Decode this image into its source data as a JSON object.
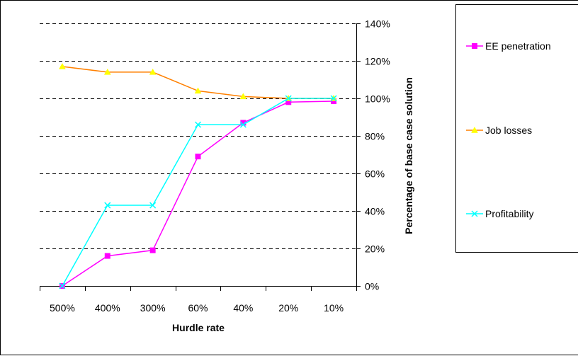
{
  "chart_data": {
    "type": "line",
    "title": "",
    "xlabel": "Hurdle rate",
    "ylabel": "Percentage of base case solution",
    "categories": [
      "500%",
      "400%",
      "300%",
      "60%",
      "40%",
      "20%",
      "10%"
    ],
    "ylim": [
      0,
      140
    ],
    "yticks": [
      0,
      20,
      40,
      60,
      80,
      100,
      120,
      140
    ],
    "ytick_labels": [
      "0%",
      "20%",
      "40%",
      "60%",
      "80%",
      "100%",
      "120%",
      "140%"
    ],
    "y_axis_side": "right",
    "grid": "horizontal dashed",
    "legend_position": "right",
    "series": [
      {
        "name": "EE penetration",
        "values": [
          0,
          16,
          19,
          69,
          87,
          98,
          98.5
        ],
        "color": "#ff00ff",
        "line_color": "#ff00ff",
        "marker": "square"
      },
      {
        "name": "Job losses",
        "values": [
          117,
          114,
          114,
          104,
          101,
          100,
          100
        ],
        "color": "#ffff00",
        "line_color": "#ff8000",
        "marker": "triangle"
      },
      {
        "name": "Profitability",
        "values": [
          0,
          43,
          43,
          86,
          86,
          100,
          100
        ],
        "color": "#00ffff",
        "line_color": "#00ffff",
        "marker": "x"
      }
    ]
  }
}
